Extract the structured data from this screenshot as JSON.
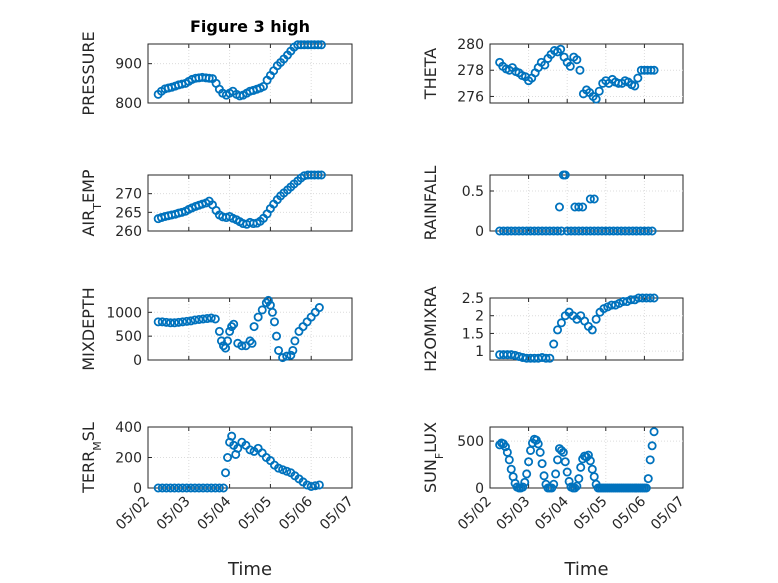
{
  "chart_data": [
    {
      "type": "scatter",
      "title": "Figure 3 high",
      "ylabel": "PRESSURE",
      "xlim": [
        0,
        5
      ],
      "ylim": [
        800,
        950
      ],
      "yticks": [
        800,
        900
      ],
      "xticklabels": [],
      "xlabel": "",
      "x": [
        0.25,
        0.33,
        0.42,
        0.5,
        0.58,
        0.67,
        0.75,
        0.83,
        0.92,
        1.0,
        1.08,
        1.17,
        1.25,
        1.33,
        1.42,
        1.5,
        1.58,
        1.67,
        1.75,
        1.83,
        1.92,
        2.0,
        2.08,
        2.17,
        2.25,
        2.33,
        2.42,
        2.5,
        2.58,
        2.67,
        2.75,
        2.83,
        2.92,
        3.0,
        3.08,
        3.17,
        3.25,
        3.33,
        3.42,
        3.5,
        3.58,
        3.67,
        3.75,
        3.83,
        3.92,
        4.0,
        4.08,
        4.17,
        4.25
      ],
      "y": [
        822,
        830,
        836,
        838,
        840,
        843,
        846,
        848,
        850,
        855,
        860,
        863,
        864,
        865,
        864,
        863,
        862,
        850,
        835,
        825,
        820,
        825,
        830,
        822,
        818,
        820,
        825,
        830,
        832,
        835,
        838,
        842,
        858,
        870,
        882,
        895,
        903,
        912,
        922,
        932,
        942,
        948,
        948,
        948,
        948,
        948,
        948,
        948,
        948
      ]
    },
    {
      "type": "scatter",
      "title": "",
      "ylabel": "THETA",
      "xlim": [
        0,
        5
      ],
      "ylim": [
        275.5,
        280
      ],
      "yticks": [
        276,
        278,
        280
      ],
      "xticklabels": [],
      "xlabel": "",
      "x": [
        0.25,
        0.33,
        0.42,
        0.5,
        0.58,
        0.67,
        0.75,
        0.83,
        0.92,
        1.0,
        1.08,
        1.17,
        1.25,
        1.33,
        1.42,
        1.5,
        1.58,
        1.67,
        1.75,
        1.83,
        1.92,
        2.0,
        2.08,
        2.17,
        2.25,
        2.33,
        2.42,
        2.5,
        2.58,
        2.67,
        2.75,
        2.83,
        2.92,
        3.0,
        3.08,
        3.17,
        3.25,
        3.33,
        3.42,
        3.5,
        3.58,
        3.67,
        3.75,
        3.83,
        3.92,
        4.0,
        4.08,
        4.17,
        4.25
      ],
      "y": [
        278.6,
        278.3,
        278.1,
        278.0,
        278.2,
        277.9,
        277.8,
        277.6,
        277.5,
        277.2,
        277.4,
        277.8,
        278.2,
        278.6,
        278.4,
        278.9,
        279.2,
        279.5,
        279.4,
        279.6,
        279.0,
        278.6,
        278.3,
        279.0,
        278.8,
        278.0,
        276.2,
        276.5,
        276.3,
        276.0,
        275.8,
        276.4,
        277.0,
        277.2,
        277.0,
        277.3,
        277.1,
        277.0,
        277.0,
        277.2,
        277.1,
        276.9,
        276.8,
        277.4,
        278.0,
        278.0,
        278.0,
        278.0,
        278.0
      ]
    },
    {
      "type": "scatter",
      "title": "",
      "ylabel": "AIR",
      "ylabel_sub": "T",
      "ylabel_rest": "EMP",
      "xlim": [
        0,
        5
      ],
      "ylim": [
        260,
        275
      ],
      "yticks": [
        260,
        265,
        270
      ],
      "xticklabels": [],
      "xlabel": "",
      "x": [
        0.25,
        0.33,
        0.42,
        0.5,
        0.58,
        0.67,
        0.75,
        0.83,
        0.92,
        1.0,
        1.08,
        1.17,
        1.25,
        1.33,
        1.42,
        1.5,
        1.58,
        1.67,
        1.75,
        1.83,
        1.92,
        2.0,
        2.08,
        2.17,
        2.25,
        2.33,
        2.42,
        2.5,
        2.58,
        2.67,
        2.75,
        2.83,
        2.92,
        3.0,
        3.08,
        3.17,
        3.25,
        3.33,
        3.42,
        3.5,
        3.58,
        3.67,
        3.75,
        3.83,
        3.92,
        4.0,
        4.08,
        4.17,
        4.25
      ],
      "y": [
        263.3,
        263.6,
        263.9,
        264.1,
        264.3,
        264.5,
        264.8,
        265.0,
        265.3,
        265.8,
        266.2,
        266.6,
        266.9,
        267.2,
        267.5,
        268.0,
        267.0,
        265.5,
        264.3,
        263.8,
        263.6,
        263.9,
        263.4,
        263.0,
        262.5,
        262.0,
        261.8,
        262.3,
        262.0,
        262.1,
        262.6,
        263.4,
        264.6,
        266.0,
        267.2,
        268.4,
        269.4,
        270.2,
        271.0,
        271.8,
        272.6,
        273.4,
        274.2,
        274.8,
        275.0,
        275.0,
        275.0,
        275.0,
        275.0
      ]
    },
    {
      "type": "scatter",
      "title": "",
      "ylabel": "RAINFALL",
      "xlim": [
        0,
        5
      ],
      "ylim": [
        0,
        0.7
      ],
      "yticks": [
        0,
        0.5
      ],
      "xticklabels": [],
      "xlabel": "",
      "x": [
        0.25,
        0.35,
        0.45,
        0.55,
        0.65,
        0.75,
        0.85,
        0.95,
        1.05,
        1.15,
        1.25,
        1.35,
        1.45,
        1.55,
        1.65,
        1.75,
        1.85,
        1.9,
        1.95,
        2.0,
        2.1,
        2.2,
        2.3,
        2.4,
        2.5,
        2.6,
        2.7,
        2.8,
        2.9,
        3.0,
        3.1,
        3.2,
        3.3,
        3.4,
        3.5,
        3.6,
        3.7,
        3.8,
        3.9,
        4.0,
        4.1,
        4.2,
        1.8,
        2.2,
        2.3,
        2.4,
        2.6,
        2.7
      ],
      "y": [
        0,
        0,
        0,
        0,
        0,
        0,
        0,
        0,
        0,
        0,
        0,
        0,
        0,
        0,
        0,
        0,
        0,
        0.7,
        0.7,
        0,
        0,
        0,
        0,
        0,
        0,
        0,
        0,
        0,
        0,
        0,
        0,
        0,
        0,
        0,
        0,
        0,
        0,
        0,
        0,
        0,
        0,
        0,
        0.3,
        0.3,
        0.3,
        0.3,
        0.4,
        0.4
      ]
    },
    {
      "type": "scatter",
      "title": "",
      "ylabel": "MIXDEPTH",
      "xlim": [
        0,
        5
      ],
      "ylim": [
        0,
        1300
      ],
      "yticks": [
        0,
        500,
        1000
      ],
      "xticklabels": [],
      "xlabel": "",
      "x": [
        0.25,
        0.35,
        0.45,
        0.55,
        0.65,
        0.75,
        0.85,
        0.95,
        1.05,
        1.15,
        1.25,
        1.35,
        1.45,
        1.55,
        1.65,
        1.75,
        1.8,
        1.85,
        1.9,
        1.95,
        2.0,
        2.05,
        2.1,
        2.2,
        2.3,
        2.4,
        2.5,
        2.55,
        2.6,
        2.7,
        2.8,
        2.9,
        2.95,
        3.0,
        3.05,
        3.1,
        3.15,
        3.2,
        3.3,
        3.4,
        3.5,
        3.55,
        3.6,
        3.7,
        3.8,
        3.9,
        4.0,
        4.1,
        4.2
      ],
      "y": [
        800,
        800,
        790,
        780,
        780,
        790,
        800,
        810,
        820,
        840,
        850,
        860,
        870,
        880,
        860,
        600,
        400,
        300,
        250,
        400,
        600,
        700,
        750,
        350,
        300,
        300,
        400,
        350,
        700,
        900,
        1050,
        1200,
        1250,
        1150,
        1000,
        800,
        500,
        200,
        50,
        80,
        100,
        200,
        400,
        600,
        700,
        800,
        900,
        1000,
        1100
      ]
    },
    {
      "type": "scatter",
      "title": "",
      "ylabel": "H2OMIXRA",
      "xlim": [
        0,
        5
      ],
      "ylim": [
        0.75,
        2.5
      ],
      "yticks": [
        1,
        1.5,
        2,
        2.5
      ],
      "xticklabels": [],
      "xlabel": "",
      "x": [
        0.25,
        0.35,
        0.45,
        0.55,
        0.65,
        0.75,
        0.85,
        0.95,
        1.05,
        1.15,
        1.25,
        1.35,
        1.45,
        1.55,
        1.65,
        1.75,
        1.85,
        1.95,
        2.05,
        2.15,
        2.25,
        2.35,
        2.45,
        2.55,
        2.65,
        2.75,
        2.85,
        2.95,
        3.05,
        3.15,
        3.25,
        3.35,
        3.45,
        3.55,
        3.65,
        3.75,
        3.85,
        3.95,
        4.05,
        4.15,
        4.25
      ],
      "y": [
        0.9,
        0.9,
        0.9,
        0.9,
        0.88,
        0.85,
        0.82,
        0.8,
        0.8,
        0.8,
        0.8,
        0.82,
        0.8,
        0.8,
        1.2,
        1.6,
        1.8,
        2.0,
        2.1,
        2.0,
        1.9,
        2.0,
        1.85,
        1.7,
        1.6,
        1.9,
        2.1,
        2.2,
        2.25,
        2.3,
        2.3,
        2.35,
        2.4,
        2.4,
        2.45,
        2.45,
        2.5,
        2.5,
        2.5,
        2.5,
        2.5
      ]
    },
    {
      "type": "scatter",
      "title": "",
      "ylabel": "TERR",
      "ylabel_sub": "M",
      "ylabel_rest": "SL",
      "xlim": [
        0,
        5
      ],
      "ylim": [
        0,
        400
      ],
      "yticks": [
        0,
        200,
        400
      ],
      "xticklabels": [
        "05/02",
        "05/03",
        "05/04",
        "05/05",
        "05/06",
        "05/07"
      ],
      "xlabel": "Time",
      "x": [
        0.25,
        0.35,
        0.45,
        0.55,
        0.65,
        0.75,
        0.85,
        0.95,
        1.05,
        1.15,
        1.25,
        1.35,
        1.45,
        1.55,
        1.65,
        1.75,
        1.85,
        1.9,
        1.95,
        2.0,
        2.05,
        2.1,
        2.15,
        2.2,
        2.3,
        2.4,
        2.5,
        2.6,
        2.7,
        2.8,
        2.9,
        3.0,
        3.1,
        3.2,
        3.3,
        3.4,
        3.5,
        3.6,
        3.7,
        3.8,
        3.9,
        4.0,
        4.1,
        4.2
      ],
      "y": [
        0,
        0,
        0,
        0,
        0,
        0,
        0,
        0,
        0,
        0,
        0,
        0,
        0,
        0,
        0,
        0,
        0,
        100,
        200,
        300,
        340,
        280,
        220,
        260,
        300,
        280,
        250,
        240,
        260,
        230,
        200,
        180,
        150,
        130,
        120,
        110,
        100,
        80,
        60,
        40,
        20,
        10,
        15,
        20
      ]
    },
    {
      "type": "scatter",
      "title": "",
      "ylabel": "SUN",
      "ylabel_sub": "F",
      "ylabel_rest": "LUX",
      "xlim": [
        0,
        5
      ],
      "ylim": [
        0,
        650
      ],
      "yticks": [
        0,
        500
      ],
      "xticklabels": [
        "05/02",
        "05/03",
        "05/04",
        "05/05",
        "05/06",
        "05/07"
      ],
      "xlabel": "Time",
      "x": [
        0.25,
        0.3,
        0.35,
        0.4,
        0.45,
        0.5,
        0.55,
        0.6,
        0.65,
        0.7,
        0.75,
        0.8,
        0.85,
        0.9,
        0.95,
        1.0,
        1.05,
        1.1,
        1.15,
        1.2,
        1.25,
        1.3,
        1.35,
        1.4,
        1.45,
        1.5,
        1.55,
        1.6,
        1.65,
        1.7,
        1.75,
        1.8,
        1.85,
        1.9,
        1.95,
        2.0,
        2.05,
        2.1,
        2.15,
        2.2,
        2.25,
        2.3,
        2.35,
        2.4,
        2.45,
        2.5,
        2.55,
        2.6,
        2.65,
        2.7,
        2.75,
        2.8,
        2.85,
        2.9,
        2.95,
        3.0,
        3.05,
        3.1,
        3.15,
        3.2,
        3.25,
        3.3,
        3.35,
        3.4,
        3.45,
        3.5,
        3.55,
        3.6,
        3.65,
        3.7,
        3.75,
        3.8,
        3.85,
        3.9,
        3.95,
        4.0,
        4.05,
        4.1,
        4.15,
        4.2,
        4.25
      ],
      "y": [
        460,
        480,
        470,
        440,
        380,
        300,
        200,
        120,
        50,
        10,
        0,
        0,
        10,
        60,
        150,
        280,
        400,
        480,
        520,
        510,
        470,
        380,
        260,
        130,
        40,
        0,
        0,
        0,
        40,
        150,
        300,
        420,
        400,
        380,
        280,
        170,
        70,
        10,
        0,
        0,
        20,
        100,
        220,
        310,
        340,
        330,
        350,
        290,
        200,
        120,
        40,
        0,
        0,
        0,
        0,
        0,
        0,
        0,
        0,
        0,
        0,
        0,
        0,
        0,
        0,
        0,
        0,
        0,
        0,
        0,
        0,
        0,
        0,
        0,
        0,
        0,
        0,
        100,
        300,
        450,
        600
      ]
    }
  ]
}
